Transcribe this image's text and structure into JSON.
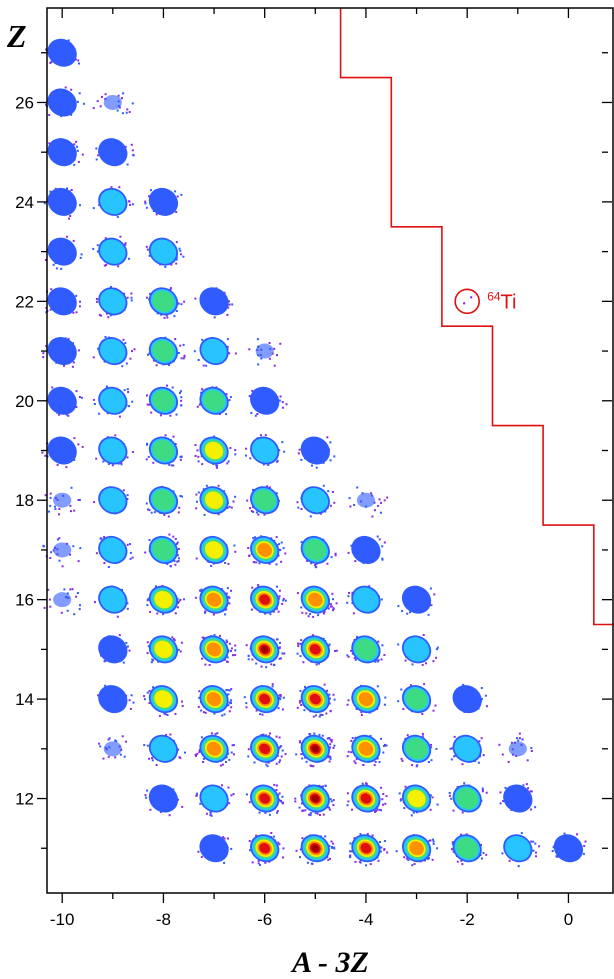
{
  "chart_data": {
    "type": "heatmap",
    "title": "",
    "xlabel": "A - 3Z",
    "ylabel": "Z",
    "xlim": [
      -10.3,
      0.9
    ],
    "ylim": [
      10.1,
      27.9
    ],
    "x_ticks": [
      -10,
      -8,
      -6,
      -4,
      -2,
      0
    ],
    "x_tick_labels": [
      "-10",
      "-8",
      "-6",
      "-4",
      "-2",
      "0"
    ],
    "y_ticks": [
      12,
      14,
      16,
      18,
      20,
      22,
      24,
      26
    ],
    "y_tick_labels": [
      "12",
      "14",
      "16",
      "18",
      "20",
      "22",
      "24",
      "26"
    ],
    "grid": false,
    "colormap": [
      "#8a2be2",
      "#2f5bff",
      "#27c4ff",
      "#3ddc84",
      "#f4f000",
      "#ff9000",
      "#e01010",
      "#a00000"
    ],
    "boundary_line": {
      "color": "#e01010",
      "points": [
        [
          -4.5,
          27.9
        ],
        [
          -4.5,
          26.5
        ],
        [
          -3.5,
          26.5
        ],
        [
          -3.5,
          23.5
        ],
        [
          -2.5,
          23.5
        ],
        [
          -2.5,
          21.5
        ],
        [
          -1.5,
          21.5
        ],
        [
          -1.5,
          19.5
        ],
        [
          -0.5,
          19.5
        ],
        [
          -0.5,
          17.5
        ],
        [
          0.5,
          17.5
        ],
        [
          0.5,
          15.5
        ],
        [
          0.9,
          15.5
        ]
      ]
    },
    "annotation": {
      "label_sup": "64",
      "label": "Ti",
      "x": -2,
      "y": 22,
      "color": "#e01010"
    }
  }
}
